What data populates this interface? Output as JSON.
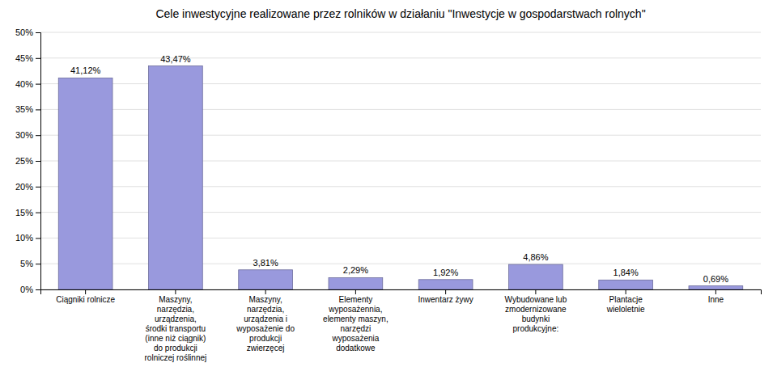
{
  "chart_data": {
    "type": "bar",
    "title": "Cele inwestycyjne realizowane przez rolników w działaniu \"Inwestycje w gospodarstwach rolnych\"",
    "categories": [
      "Ciągniki rolnicze",
      "Maszyny,\nnarzędzia,\nurządzenia,\nśrodki transportu\n(inne niż ciągnik)\ndo produkcji\nrolniczej roślinnej",
      "Maszyny,\nnarzędzia,\nurządzenia i\nwyposażenie do\nprodukcji\nzwierzęcej",
      "Elementy\nwyposażennia,\nelementy maszyn,\nnarzędzi\nwyposażenia\ndodatkowe",
      "Inwentarz żywy",
      "Wybudowane lub\nzmodernizowane\nbudynki\nprodukcyjne:",
      "Plantacje\nwieloletnie",
      "Inne"
    ],
    "values": [
      41.12,
      43.47,
      3.81,
      2.29,
      1.92,
      4.86,
      1.84,
      0.69
    ],
    "value_labels": [
      "41,12%",
      "43,47%",
      "3,81%",
      "2,29%",
      "1,92%",
      "4,86%",
      "1,84%",
      "0,69%"
    ],
    "color": "#9999dd",
    "ylim": [
      0,
      50
    ],
    "yticks": [
      {
        "value": 0,
        "label": "0%"
      },
      {
        "value": 5,
        "label": "5%"
      },
      {
        "value": 10,
        "label": "10%"
      },
      {
        "value": 15,
        "label": "15%"
      },
      {
        "value": 20,
        "label": "20%"
      },
      {
        "value": 25,
        "label": "25%"
      },
      {
        "value": 30,
        "label": "30%"
      },
      {
        "value": 35,
        "label": "35%"
      },
      {
        "value": 40,
        "label": "40%"
      },
      {
        "value": 45,
        "label": "45%"
      },
      {
        "value": 50,
        "label": "50%"
      }
    ],
    "grid": true,
    "data_labels": true
  }
}
